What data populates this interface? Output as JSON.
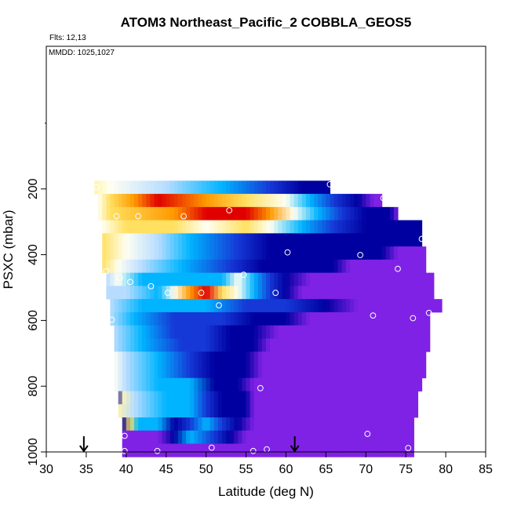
{
  "chart_data": {
    "type": "heatmap",
    "title": "ATOM3 Northeast_Pacific_2 COBBLA_GEOS5",
    "annotations": [
      "Flts: 12,13",
      "MMDD: 1025,1027"
    ],
    "xlabel": "Latitude (deg N)",
    "ylabel": "PSXC (mbar)",
    "xlim": [
      30,
      85
    ],
    "ylim": [
      1000,
      0
    ],
    "xticks": [
      30,
      35,
      40,
      45,
      50,
      55,
      60,
      65,
      70,
      75,
      80,
      85
    ],
    "yticks": [
      200,
      400,
      600,
      800,
      1000
    ],
    "grid": false,
    "legend": "none",
    "colors": {
      "purple": "#7f22e6",
      "dark_blue": "#0000a0",
      "blue": "#1538d6",
      "light_blue": "#00b4ff",
      "pale_blue": "#b8dcff",
      "white": "#fffff2",
      "yellow": "#ffe060",
      "orange": "#ff9900",
      "red": "#e00000",
      "marker": "#ffffff",
      "arrow": "#000000"
    },
    "bands": [
      {
        "p": 195,
        "start": 36,
        "end": 65.5,
        "stops": [
          [
            36,
            "pale_yellow"
          ],
          [
            38,
            "white"
          ],
          [
            45,
            "pale_blue"
          ],
          [
            52,
            "light_blue"
          ],
          [
            58,
            "blue"
          ],
          [
            62,
            "dark_blue"
          ],
          [
            65.5,
            "dark_blue"
          ]
        ]
      },
      {
        "p": 235,
        "start": 36.5,
        "end": 72,
        "stops": [
          [
            36.5,
            "white"
          ],
          [
            38,
            "yellow"
          ],
          [
            41,
            "orange"
          ],
          [
            44,
            "red"
          ],
          [
            50,
            "orange"
          ],
          [
            55,
            "yellow"
          ],
          [
            60,
            "white"
          ],
          [
            63,
            "light_blue"
          ],
          [
            66,
            "blue"
          ],
          [
            69,
            "dark_blue"
          ],
          [
            71,
            "purple"
          ],
          [
            72,
            "purple"
          ]
        ]
      },
      {
        "p": 275,
        "start": 36.5,
        "end": 74,
        "stops": [
          [
            36.5,
            "white"
          ],
          [
            38,
            "yellow"
          ],
          [
            46,
            "orange"
          ],
          [
            50,
            "red"
          ],
          [
            55,
            "red"
          ],
          [
            58,
            "orange"
          ],
          [
            61,
            "white"
          ],
          [
            64,
            "light_blue"
          ],
          [
            67,
            "blue"
          ],
          [
            70,
            "dark_blue"
          ],
          [
            73,
            "dark_blue"
          ],
          [
            74,
            "purple"
          ]
        ]
      },
      {
        "p": 315,
        "start": 37,
        "end": 77,
        "stops": [
          [
            37,
            "white"
          ],
          [
            40,
            "yellow"
          ],
          [
            46,
            "yellow"
          ],
          [
            50,
            "white"
          ],
          [
            55,
            "yellow"
          ],
          [
            58,
            "white"
          ],
          [
            62,
            "light_blue"
          ],
          [
            66,
            "blue"
          ],
          [
            70,
            "dark_blue"
          ],
          [
            76,
            "dark_blue"
          ],
          [
            77,
            "dark_blue"
          ]
        ]
      },
      {
        "p": 355,
        "start": 37,
        "end": 77,
        "stops": [
          [
            37,
            "yellow"
          ],
          [
            40,
            "white"
          ],
          [
            44,
            "pale_blue"
          ],
          [
            48,
            "light_blue"
          ],
          [
            54,
            "blue"
          ],
          [
            58,
            "dark_blue"
          ],
          [
            76,
            "dark_blue"
          ],
          [
            77,
            "dark_blue"
          ]
        ]
      },
      {
        "p": 395,
        "start": 37,
        "end": 77.5,
        "stops": [
          [
            37,
            "yellow"
          ],
          [
            40,
            "white"
          ],
          [
            44,
            "pale_blue"
          ],
          [
            48,
            "light_blue"
          ],
          [
            54,
            "blue"
          ],
          [
            58,
            "dark_blue"
          ],
          [
            72,
            "dark_blue"
          ],
          [
            74,
            "purple"
          ],
          [
            77.5,
            "purple"
          ]
        ]
      },
      {
        "p": 435,
        "start": 37,
        "end": 77.5,
        "stops": [
          [
            37,
            "yellow"
          ],
          [
            39,
            "white"
          ],
          [
            42,
            "pale_blue"
          ],
          [
            47,
            "light_blue"
          ],
          [
            53,
            "blue"
          ],
          [
            57,
            "dark_blue"
          ],
          [
            66,
            "dark_blue"
          ],
          [
            68,
            "purple"
          ],
          [
            77.5,
            "purple"
          ]
        ]
      },
      {
        "p": 475,
        "start": 37.5,
        "end": 78.5,
        "stops": [
          [
            37.5,
            "pale_blue"
          ],
          [
            39,
            "white"
          ],
          [
            42,
            "light_blue"
          ],
          [
            47,
            "light_blue"
          ],
          [
            52,
            "light_blue"
          ],
          [
            54,
            "white"
          ],
          [
            56,
            "light_blue"
          ],
          [
            58,
            "blue"
          ],
          [
            60,
            "dark_blue"
          ],
          [
            63,
            "purple"
          ],
          [
            78.5,
            "purple"
          ]
        ]
      },
      {
        "p": 515,
        "start": 37.5,
        "end": 78.5,
        "stops": [
          [
            37.5,
            "pale_blue"
          ],
          [
            40,
            "pale_blue"
          ],
          [
            44,
            "light_blue"
          ],
          [
            46,
            "white"
          ],
          [
            48,
            "orange"
          ],
          [
            50,
            "red"
          ],
          [
            52,
            "yellow"
          ],
          [
            54,
            "white"
          ],
          [
            56,
            "light_blue"
          ],
          [
            58,
            "blue"
          ],
          [
            60,
            "dark_blue"
          ],
          [
            62,
            "purple"
          ],
          [
            78.5,
            "purple"
          ]
        ]
      },
      {
        "p": 555,
        "start": 38,
        "end": 79.5,
        "stops": [
          [
            38,
            "pale_blue"
          ],
          [
            42,
            "light_blue"
          ],
          [
            50,
            "light_blue"
          ],
          [
            55,
            "blue"
          ],
          [
            60,
            "blue"
          ],
          [
            65,
            "dark_blue"
          ],
          [
            69,
            "purple"
          ],
          [
            79.5,
            "purple"
          ]
        ]
      },
      {
        "p": 595,
        "start": 38,
        "end": 78,
        "stops": [
          [
            38,
            "pale_blue"
          ],
          [
            41,
            "light_blue"
          ],
          [
            46,
            "blue"
          ],
          [
            52,
            "blue"
          ],
          [
            56,
            "dark_blue"
          ],
          [
            60,
            "dark_blue"
          ],
          [
            63,
            "purple"
          ],
          [
            78,
            "purple"
          ]
        ]
      },
      {
        "p": 635,
        "start": 38.5,
        "end": 78,
        "stops": [
          [
            38.5,
            "pale_blue"
          ],
          [
            42,
            "light_blue"
          ],
          [
            46,
            "blue"
          ],
          [
            50,
            "blue"
          ],
          [
            53,
            "dark_blue"
          ],
          [
            56,
            "dark_blue"
          ],
          [
            59,
            "purple"
          ],
          [
            78,
            "purple"
          ]
        ]
      },
      {
        "p": 675,
        "start": 38.5,
        "end": 78,
        "stops": [
          [
            38.5,
            "pale_blue"
          ],
          [
            42,
            "light_blue"
          ],
          [
            47,
            "blue"
          ],
          [
            50,
            "blue"
          ],
          [
            53,
            "dark_blue"
          ],
          [
            56,
            "dark_blue"
          ],
          [
            58,
            "purple"
          ],
          [
            78,
            "purple"
          ]
        ]
      },
      {
        "p": 715,
        "start": 38.5,
        "end": 77.5,
        "stops": [
          [
            38.5,
            "white"
          ],
          [
            40,
            "pale_blue"
          ],
          [
            44,
            "light_blue"
          ],
          [
            48,
            "blue"
          ],
          [
            51,
            "dark_blue"
          ],
          [
            55,
            "dark_blue"
          ],
          [
            57,
            "purple"
          ],
          [
            77.5,
            "purple"
          ]
        ]
      },
      {
        "p": 755,
        "start": 38.5,
        "end": 77.5,
        "stops": [
          [
            38.5,
            "white"
          ],
          [
            40,
            "pale_blue"
          ],
          [
            44,
            "light_blue"
          ],
          [
            48,
            "blue"
          ],
          [
            51,
            "dark_blue"
          ],
          [
            55,
            "dark_blue"
          ],
          [
            57,
            "purple"
          ],
          [
            77.5,
            "purple"
          ]
        ]
      },
      {
        "p": 795,
        "start": 38.5,
        "end": 77,
        "stops": [
          [
            38.5,
            "white"
          ],
          [
            40,
            "pale_blue"
          ],
          [
            44,
            "light_blue"
          ],
          [
            48,
            "light_blue"
          ],
          [
            51,
            "dark_blue"
          ],
          [
            54,
            "dark_blue"
          ],
          [
            56,
            "purple"
          ],
          [
            77,
            "purple"
          ]
        ]
      },
      {
        "p": 835,
        "start": 39,
        "end": 76.5,
        "stops": [
          [
            39,
            "dark_blue"
          ],
          [
            39.5,
            "pale_yellow"
          ],
          [
            41,
            "pale_blue"
          ],
          [
            45,
            "light_blue"
          ],
          [
            48,
            "light_blue"
          ],
          [
            50,
            "blue"
          ],
          [
            52,
            "dark_blue"
          ],
          [
            55,
            "dark_blue"
          ],
          [
            56,
            "purple"
          ],
          [
            76.5,
            "purple"
          ]
        ]
      },
      {
        "p": 875,
        "start": 39,
        "end": 76.5,
        "stops": [
          [
            39,
            "pale_yellow"
          ],
          [
            41,
            "pale_blue"
          ],
          [
            45,
            "light_blue"
          ],
          [
            48,
            "light_blue"
          ],
          [
            50,
            "blue"
          ],
          [
            52,
            "dark_blue"
          ],
          [
            55,
            "dark_blue"
          ],
          [
            56,
            "purple"
          ],
          [
            76.5,
            "purple"
          ]
        ]
      },
      {
        "p": 915,
        "start": 39.5,
        "end": 76,
        "stops": [
          [
            39.5,
            "dark_blue"
          ],
          [
            40.5,
            "yellow"
          ],
          [
            41.5,
            "light_blue"
          ],
          [
            44,
            "light_blue"
          ],
          [
            46,
            "dark_blue"
          ],
          [
            48,
            "blue"
          ],
          [
            50,
            "light_blue"
          ],
          [
            52,
            "blue"
          ],
          [
            54,
            "dark_blue"
          ],
          [
            56,
            "purple"
          ],
          [
            76,
            "purple"
          ]
        ]
      },
      {
        "p": 955,
        "start": 39.5,
        "end": 76,
        "stops": [
          [
            39.5,
            "purple"
          ],
          [
            44,
            "purple"
          ],
          [
            46,
            "dark_blue"
          ],
          [
            48,
            "light_blue"
          ],
          [
            51,
            "blue"
          ],
          [
            53,
            "dark_blue"
          ],
          [
            55,
            "purple"
          ],
          [
            76,
            "purple"
          ]
        ]
      },
      {
        "p": 995,
        "start": 39.5,
        "end": 76,
        "stops": [
          [
            39.5,
            "purple"
          ],
          [
            76,
            "purple"
          ]
        ]
      }
    ],
    "points": [
      [
        36.3,
        195
      ],
      [
        65.5,
        186
      ],
      [
        72.2,
        228
      ],
      [
        38.8,
        283
      ],
      [
        41.5,
        283
      ],
      [
        47.2,
        283
      ],
      [
        52.9,
        265
      ],
      [
        77.0,
        352
      ],
      [
        60.2,
        393
      ],
      [
        69.3,
        401
      ],
      [
        37.5,
        450
      ],
      [
        74.0,
        443
      ],
      [
        54.7,
        461
      ],
      [
        39.2,
        470
      ],
      [
        40.5,
        483
      ],
      [
        43.1,
        496
      ],
      [
        45.2,
        516
      ],
      [
        49.4,
        516
      ],
      [
        58.7,
        516
      ],
      [
        51.6,
        554
      ],
      [
        38.2,
        598
      ],
      [
        70.9,
        585
      ],
      [
        75.9,
        593
      ],
      [
        77.9,
        577
      ],
      [
        79.2,
        608
      ],
      [
        56.8,
        806
      ],
      [
        39.8,
        951
      ],
      [
        70.2,
        945
      ],
      [
        39.8,
        997
      ],
      [
        43.9,
        997
      ],
      [
        50.7,
        987
      ],
      [
        55.9,
        997
      ],
      [
        57.6,
        992
      ],
      [
        75.3,
        988
      ]
    ],
    "arrows_x": [
      34.7,
      61.1
    ]
  }
}
